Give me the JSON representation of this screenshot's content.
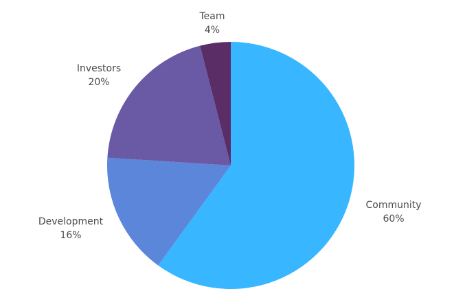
{
  "chart_data": {
    "type": "pie",
    "categories": [
      "Community",
      "Development",
      "Investors",
      "Team"
    ],
    "values": [
      60,
      16,
      20,
      4
    ],
    "percent_labels": [
      "60%",
      "16%",
      "20%",
      "4%"
    ],
    "colors": [
      "#38b6ff",
      "#5b86d9",
      "#6a5aa5",
      "#5a2d66"
    ],
    "start": "12 o'clock",
    "direction": "clockwise",
    "title": "",
    "legend": "none"
  }
}
